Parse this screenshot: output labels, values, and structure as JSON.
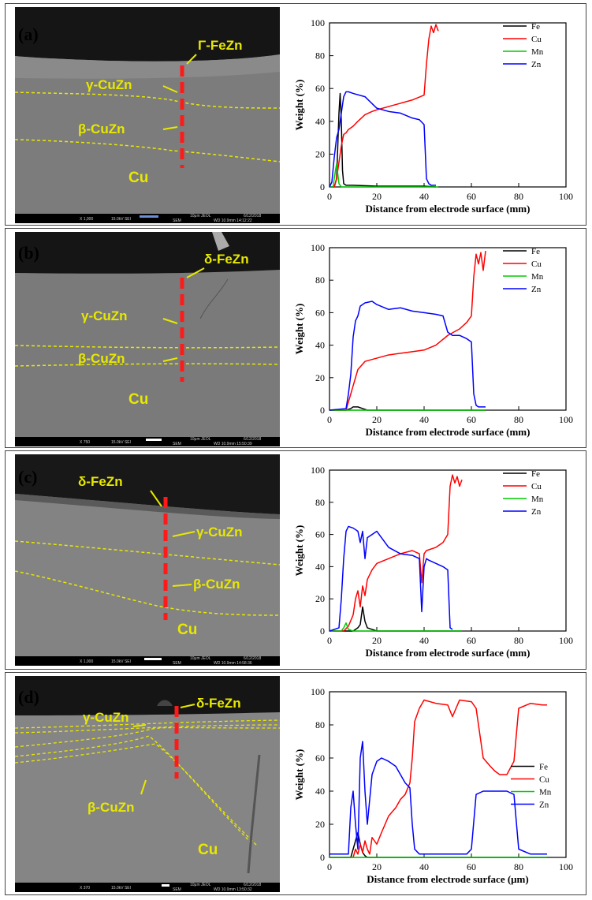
{
  "panels": [
    {
      "id": "a",
      "label": "(a)",
      "micrograph": {
        "annotations": [
          "Γ-FeZn",
          "γ-CuZn",
          "β-CuZn",
          "Cu"
        ],
        "infobar": [
          "X 1,000",
          "15.0kV SEI",
          "10μm JEOL",
          "6/12/2018",
          "WD 10.9mm 14:12:22",
          "SEM"
        ]
      },
      "chart_data": {
        "type": "line",
        "xlabel": "Distance from electrode surface (mm)",
        "ylabel": "Weight (%)",
        "xlim": [
          0,
          100
        ],
        "ylim": [
          0,
          100
        ],
        "xticks": [
          0,
          20,
          40,
          60,
          80,
          100
        ],
        "yticks": [
          0,
          20,
          40,
          60,
          80,
          100
        ],
        "legend_position": "top-right",
        "series": [
          {
            "name": "Fe",
            "color": "#000000",
            "x": [
              0,
              2,
              3,
              4,
              4.5,
              5,
              5.5,
              6,
              7,
              10,
              20,
              30,
              40,
              45
            ],
            "y": [
              0,
              0,
              5,
              45,
              57,
              40,
              10,
              2,
              1,
              1,
              0.5,
              0.5,
              0.5,
              0
            ]
          },
          {
            "name": "Cu",
            "color": "#ff0000",
            "x": [
              0,
              2,
              3,
              4,
              5,
              6,
              7,
              8,
              10,
              12,
              15,
              18,
              20,
              25,
              30,
              35,
              40,
              41,
              42,
              43,
              44,
              45,
              46
            ],
            "y": [
              0,
              0,
              5,
              15,
              25,
              32,
              33,
              35,
              37,
              40,
              44,
              46,
              47,
              49,
              51,
              53,
              56,
              75,
              90,
              98,
              94,
              99,
              95
            ]
          },
          {
            "name": "Mn",
            "color": "#00cc00",
            "x": [
              0,
              1.5,
              2.5,
              3,
              3.5,
              4,
              5,
              10,
              20,
              30,
              40,
              46
            ],
            "y": [
              0,
              0,
              10,
              14,
              8,
              2,
              0,
              0,
              0,
              0,
              0,
              0
            ]
          },
          {
            "name": "Zn",
            "color": "#0000ff",
            "x": [
              0,
              1,
              2,
              3,
              4,
              5,
              6,
              7,
              8,
              10,
              15,
              20,
              25,
              30,
              35,
              38,
              40,
              41,
              42,
              43,
              44,
              45
            ],
            "y": [
              0,
              3,
              18,
              30,
              35,
              45,
              55,
              58,
              58,
              57,
              55,
              48,
              46,
              45,
              42,
              41,
              38,
              5,
              2,
              1,
              1,
              1
            ]
          }
        ]
      }
    },
    {
      "id": "b",
      "label": "(b)",
      "micrograph": {
        "annotations": [
          "δ-FeZn",
          "γ-CuZn",
          "β-CuZn",
          "Cu"
        ],
        "infobar": [
          "X 750",
          "15.0kV SEI",
          "10μm JEOL",
          "6/12/2018",
          "WD 10.9mm 15:50:39",
          "SEM"
        ]
      },
      "chart_data": {
        "type": "line",
        "xlabel": "Distance from electrode surface (mm)",
        "ylabel": "Weight (%)",
        "xlim": [
          0,
          100
        ],
        "ylim": [
          0,
          100
        ],
        "xticks": [
          0,
          20,
          40,
          60,
          80,
          100
        ],
        "yticks": [
          0,
          20,
          40,
          60,
          80,
          100
        ],
        "legend_position": "top-right",
        "series": [
          {
            "name": "Fe",
            "color": "#000000",
            "x": [
              0,
              7,
              9,
              10,
              12,
              14,
              16,
              20,
              40,
              66
            ],
            "y": [
              0,
              0,
              1,
              2,
              2,
              1,
              0,
              0,
              0,
              0
            ]
          },
          {
            "name": "Cu",
            "color": "#ff0000",
            "x": [
              0,
              7,
              8,
              10,
              12,
              15,
              20,
              25,
              30,
              35,
              40,
              45,
              50,
              55,
              58,
              60,
              61,
              62,
              63,
              64,
              65,
              66
            ],
            "y": [
              0,
              0,
              5,
              15,
              25,
              30,
              32,
              34,
              35,
              36,
              37,
              40,
              46,
              50,
              54,
              58,
              82,
              96,
              90,
              97,
              86,
              98
            ]
          },
          {
            "name": "Mn",
            "color": "#00cc00",
            "x": [
              0,
              66
            ],
            "y": [
              0,
              0
            ]
          },
          {
            "name": "Zn",
            "color": "#0000ff",
            "x": [
              0,
              7,
              8,
              9,
              10,
              11,
              12,
              13,
              15,
              18,
              20,
              25,
              30,
              35,
              40,
              45,
              48,
              50,
              52,
              55,
              58,
              60,
              61,
              62,
              63,
              66
            ],
            "y": [
              0,
              1,
              10,
              22,
              45,
              55,
              58,
              64,
              66,
              67,
              65,
              62,
              63,
              61,
              60,
              59,
              58,
              48,
              46,
              46,
              44,
              42,
              10,
              3,
              2,
              2
            ]
          }
        ]
      }
    },
    {
      "id": "c",
      "label": "(c)",
      "micrograph": {
        "annotations": [
          "δ-FeZn",
          "γ-CuZn",
          "β-CuZn",
          "Cu"
        ],
        "infobar": [
          "X 1,000",
          "15.0kV SEI",
          "10μm JEOL",
          "6/12/2018",
          "WD 10.9mm 14:58:36",
          "SEM"
        ]
      },
      "chart_data": {
        "type": "line",
        "xlabel": "Distance from electrode surface (mm)",
        "ylabel": "Weight (%)",
        "xlim": [
          0,
          100
        ],
        "ylim": [
          0,
          100
        ],
        "xticks": [
          0,
          20,
          40,
          60,
          80,
          100
        ],
        "yticks": [
          0,
          20,
          40,
          60,
          80,
          100
        ],
        "legend_position": "top-right",
        "series": [
          {
            "name": "Fe",
            "color": "#000000",
            "x": [
              0,
              10,
              12,
              13,
              14,
              15,
              16,
              18,
              20,
              40,
              56
            ],
            "y": [
              0,
              0,
              2,
              4,
              15,
              6,
              2,
              1,
              0,
              0,
              0
            ]
          },
          {
            "name": "Cu",
            "color": "#ff0000",
            "x": [
              0,
              6,
              8,
              10,
              11,
              12,
              13,
              14,
              15,
              16,
              18,
              20,
              25,
              30,
              35,
              38,
              39,
              40,
              41,
              45,
              48,
              50,
              51,
              52,
              53,
              54,
              55,
              56
            ],
            "y": [
              0,
              0,
              3,
              10,
              20,
              25,
              15,
              28,
              22,
              32,
              38,
              42,
              45,
              48,
              50,
              48,
              30,
              48,
              50,
              52,
              55,
              60,
              90,
              97,
              92,
              96,
              90,
              94
            ]
          },
          {
            "name": "Mn",
            "color": "#00cc00",
            "x": [
              0,
              5,
              6,
              7,
              8,
              10,
              56
            ],
            "y": [
              0,
              0,
              2,
              5,
              1,
              0,
              0
            ]
          },
          {
            "name": "Zn",
            "color": "#0000ff",
            "x": [
              0,
              4,
              5,
              6,
              7,
              8,
              10,
              12,
              13,
              14,
              15,
              16,
              18,
              20,
              22,
              25,
              30,
              35,
              38,
              39,
              40,
              41,
              42,
              45,
              48,
              50,
              51,
              52
            ],
            "y": [
              0,
              2,
              20,
              45,
              62,
              65,
              64,
              62,
              55,
              62,
              45,
              58,
              60,
              62,
              58,
              52,
              48,
              47,
              45,
              12,
              40,
              45,
              44,
              42,
              40,
              38,
              2,
              1
            ]
          }
        ]
      }
    },
    {
      "id": "d",
      "label": "(d)",
      "micrograph": {
        "annotations": [
          "γ-CuZn",
          "δ-FeZn",
          "β-CuZn",
          "Cu"
        ],
        "infobar": [
          "X 370",
          "15.0kV SEI",
          "10μm JEOL",
          "6/12/2018",
          "WD 10.9mm 13:50:32",
          "SEM"
        ]
      },
      "chart_data": {
        "type": "line",
        "xlabel": "Distance from electrode surface (μm)",
        "ylabel": "Weight (%)",
        "xlim": [
          0,
          100
        ],
        "ylim": [
          0,
          100
        ],
        "xticks": [
          0,
          20,
          40,
          60,
          80,
          100
        ],
        "yticks": [
          0,
          20,
          40,
          60,
          80,
          100
        ],
        "legend_position": "right",
        "series": [
          {
            "name": "Fe",
            "color": "#000000",
            "x": [
              0,
              9,
              10,
              11,
              12,
              13,
              14,
              15,
              16,
              18,
              20,
              92
            ],
            "y": [
              0,
              0,
              5,
              10,
              15,
              8,
              3,
              1,
              0,
              0,
              0,
              0
            ]
          },
          {
            "name": "Cu",
            "color": "#ff0000",
            "x": [
              0,
              10,
              11,
              12,
              13,
              14,
              15,
              16,
              17,
              18,
              19,
              20,
              22,
              25,
              28,
              30,
              32,
              34,
              35,
              36,
              38,
              40,
              45,
              50,
              52,
              55,
              60,
              62,
              65,
              68,
              70,
              72,
              75,
              78,
              80,
              85,
              90,
              92
            ],
            "y": [
              0,
              0,
              5,
              2,
              8,
              3,
              10,
              5,
              2,
              12,
              10,
              8,
              15,
              25,
              30,
              35,
              38,
              45,
              60,
              82,
              90,
              95,
              93,
              92,
              85,
              95,
              94,
              90,
              60,
              55,
              52,
              50,
              50,
              58,
              90,
              93,
              92,
              92
            ]
          },
          {
            "name": "Mn",
            "color": "#00cc00",
            "x": [
              0,
              92
            ],
            "y": [
              0,
              0
            ]
          },
          {
            "name": "Zn",
            "color": "#0000ff",
            "x": [
              0,
              8,
              9,
              10,
              11,
              12,
              13,
              14,
              15,
              16,
              18,
              20,
              22,
              25,
              28,
              30,
              32,
              34,
              35,
              36,
              38,
              40,
              50,
              55,
              58,
              60,
              62,
              65,
              70,
              75,
              78,
              80,
              85,
              90,
              92
            ],
            "y": [
              2,
              2,
              30,
              40,
              20,
              5,
              60,
              70,
              40,
              20,
              50,
              58,
              60,
              58,
              55,
              50,
              45,
              42,
              20,
              5,
              2,
              2,
              2,
              2,
              2,
              5,
              38,
              40,
              40,
              40,
              38,
              5,
              2,
              2,
              2
            ]
          }
        ]
      }
    }
  ]
}
